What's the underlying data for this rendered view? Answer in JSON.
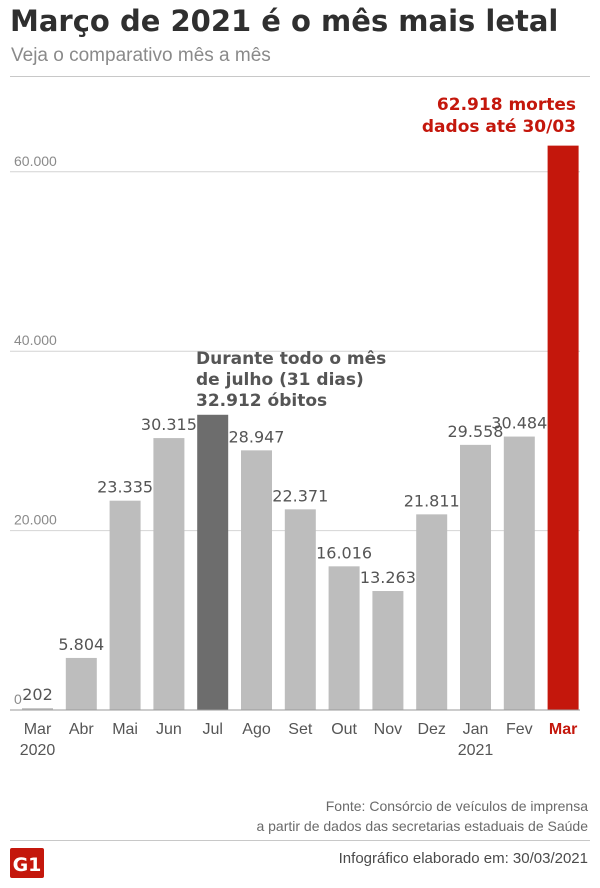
{
  "header": {
    "title": "Março de 2021 é o mês mais letal",
    "subtitle": "Veja o comparativo mês a mês"
  },
  "colors": {
    "bar_default": "#bdbdbd",
    "bar_highlight": "#6d6d6d",
    "bar_peak": "#c4170c",
    "peak_text": "#c4170c",
    "logo": "#c4170c"
  },
  "chart_data": {
    "type": "bar",
    "title": "Março de 2021 é o mês mais letal",
    "subtitle": "Veja o comparativo mês a mês",
    "categories": [
      "Mar 2020",
      "Abr",
      "Mai",
      "Jun",
      "Jul",
      "Ago",
      "Set",
      "Out",
      "Nov",
      "Dez",
      "Jan 2021",
      "Fev",
      "Mar"
    ],
    "category_lines": [
      [
        "Mar",
        "2020"
      ],
      [
        "Abr"
      ],
      [
        "Mai"
      ],
      [
        "Jun"
      ],
      [
        "Jul"
      ],
      [
        "Ago"
      ],
      [
        "Set"
      ],
      [
        "Out"
      ],
      [
        "Nov"
      ],
      [
        "Dez"
      ],
      [
        "Jan",
        "2021"
      ],
      [
        "Fev"
      ],
      [
        "Mar"
      ]
    ],
    "values": [
      202,
      5804,
      23335,
      30315,
      32912,
      28947,
      22371,
      16016,
      13263,
      21811,
      29558,
      30484,
      62918
    ],
    "value_labels": [
      "202",
      "5.804",
      "23.335",
      "30.315",
      "",
      "28.947",
      "22.371",
      "16.016",
      "13.263",
      "21.811",
      "29.558",
      "30.484",
      ""
    ],
    "highlight_index": 4,
    "peak_index": 12,
    "ylim": [
      0,
      62918
    ],
    "yticks": [
      0,
      20000,
      40000,
      60000
    ],
    "ytick_labels": [
      "0",
      "20.000",
      "40.000",
      "60.000"
    ],
    "grid": true,
    "annotations": {
      "jul": [
        "Durante todo o mês",
        "de julho (31 dias)",
        "32.912 óbitos"
      ],
      "mar": [
        "62.918 mortes",
        "dados até 30/03"
      ]
    }
  },
  "footer": {
    "source_line1": "Fonte: Consórcio de veículos de imprensa",
    "source_line2": "a partir de dados das secretarias estaduais de Saúde",
    "logo_text": "G1",
    "credit": "Infográfico elaborado em: 30/03/2021"
  }
}
